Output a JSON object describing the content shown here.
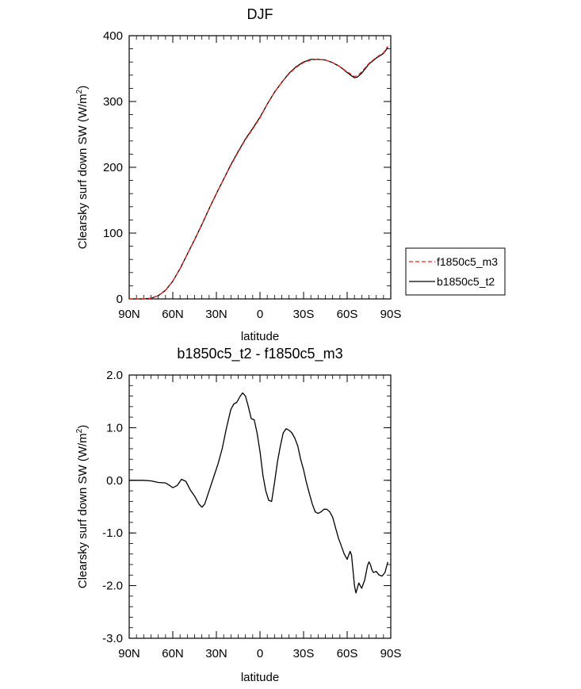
{
  "chart_data": [
    {
      "type": "line",
      "title": "DJF",
      "xlabel": "latitude",
      "ylabel": "Clearsky surf down SW (W/m",
      "ylabel_sup": "2",
      "ylabel_tail": ")",
      "x_ticks": [
        "90N",
        "60N",
        "30N",
        "0",
        "30S",
        "60S",
        "90S"
      ],
      "y_ticks": [
        "0",
        "100",
        "200",
        "300",
        "400"
      ],
      "xlim": [
        -90,
        90
      ],
      "ylim": [
        0,
        400
      ],
      "legend": [
        "f1850c5_m3",
        "b1850c5_t2"
      ],
      "legend_placement": "right",
      "series": [
        {
          "name": "f1850c5_m3",
          "color": "#e8261f",
          "dash": "dashed",
          "x": [
            -90,
            -80,
            -75,
            -70,
            -65,
            -60,
            -55,
            -50,
            -45,
            -40,
            -35,
            -30,
            -25,
            -20,
            -15,
            -10,
            -5,
            0,
            5,
            10,
            15,
            20,
            25,
            30,
            35,
            40,
            45,
            50,
            55,
            60,
            63,
            65,
            67,
            70,
            75,
            80,
            85,
            88
          ],
          "y": [
            0,
            0,
            1,
            5,
            13,
            27,
            46,
            68,
            90,
            113,
            137,
            160,
            182,
            203,
            223,
            242,
            258,
            275,
            296,
            314,
            329,
            342,
            352,
            359,
            363,
            364,
            363,
            359,
            353,
            345,
            341,
            338,
            339,
            345,
            358,
            367,
            374,
            384
          ]
        },
        {
          "name": "b1850c5_t2",
          "color": "#000000",
          "dash": "solid",
          "x": [
            -90,
            -80,
            -75,
            -70,
            -65,
            -60,
            -55,
            -50,
            -45,
            -40,
            -35,
            -30,
            -25,
            -20,
            -15,
            -10,
            -5,
            0,
            5,
            10,
            15,
            20,
            25,
            30,
            35,
            40,
            45,
            50,
            55,
            60,
            63,
            65,
            67,
            70,
            75,
            80,
            85,
            88
          ],
          "y": [
            0,
            0,
            1,
            5,
            13,
            27,
            46,
            68,
            90,
            113,
            137,
            160,
            182,
            204,
            224,
            243,
            259,
            276,
            296,
            314,
            329,
            343,
            353,
            360,
            364,
            364,
            363,
            359,
            353,
            344,
            339,
            336,
            337,
            343,
            357,
            366,
            373,
            382
          ]
        }
      ]
    },
    {
      "type": "line",
      "title": "b1850c5_t2 - f1850c5_m3",
      "xlabel": "latitude",
      "ylabel": "Clearsky surf down SW (W/m",
      "ylabel_sup": "2",
      "ylabel_tail": ")",
      "x_ticks": [
        "90N",
        "60N",
        "30N",
        "0",
        "30S",
        "60S",
        "90S"
      ],
      "y_ticks": [
        "-3.0",
        "-2.0",
        "-1.0",
        "0.0",
        "1.0",
        "2.0"
      ],
      "xlim": [
        -90,
        90
      ],
      "ylim": [
        -3,
        2
      ],
      "series": [
        {
          "color": "#000000",
          "dash": "solid",
          "x": [
            -90,
            -80,
            -75,
            -70,
            -65,
            -62,
            -60,
            -57,
            -54,
            -51,
            -48,
            -45,
            -42,
            -40,
            -38,
            -35,
            -32,
            -29,
            -26,
            -23,
            -20,
            -18,
            -16,
            -14,
            -12,
            -10,
            -8,
            -6,
            -4,
            -2,
            0,
            2,
            4,
            6,
            8,
            10,
            12,
            14,
            16,
            18,
            20,
            22,
            24,
            26,
            28,
            30,
            32,
            34,
            36,
            38,
            40,
            42,
            44,
            46,
            48,
            50,
            52,
            54,
            56,
            58,
            60,
            62,
            63,
            64,
            65,
            66,
            67,
            68,
            70,
            72,
            74,
            75,
            76,
            77,
            78,
            80,
            82,
            84,
            86,
            88
          ],
          "y": [
            0,
            0,
            -0.01,
            -0.04,
            -0.05,
            -0.1,
            -0.14,
            -0.1,
            0.02,
            -0.02,
            -0.18,
            -0.3,
            -0.45,
            -0.51,
            -0.45,
            -0.2,
            0.05,
            0.3,
            0.6,
            1.0,
            1.35,
            1.45,
            1.48,
            1.58,
            1.66,
            1.6,
            1.4,
            1.17,
            1.15,
            0.9,
            0.55,
            0.1,
            -0.2,
            -0.38,
            -0.4,
            -0.05,
            0.35,
            0.65,
            0.9,
            0.98,
            0.95,
            0.9,
            0.8,
            0.65,
            0.4,
            0.2,
            -0.05,
            -0.25,
            -0.45,
            -0.6,
            -0.63,
            -0.6,
            -0.55,
            -0.55,
            -0.6,
            -0.7,
            -0.9,
            -1.1,
            -1.25,
            -1.4,
            -1.5,
            -1.35,
            -1.42,
            -1.7,
            -2.0,
            -2.14,
            -2.05,
            -1.95,
            -2.05,
            -1.9,
            -1.62,
            -1.55,
            -1.6,
            -1.7,
            -1.75,
            -1.73,
            -1.8,
            -1.82,
            -1.75,
            -1.55
          ]
        }
      ]
    }
  ]
}
